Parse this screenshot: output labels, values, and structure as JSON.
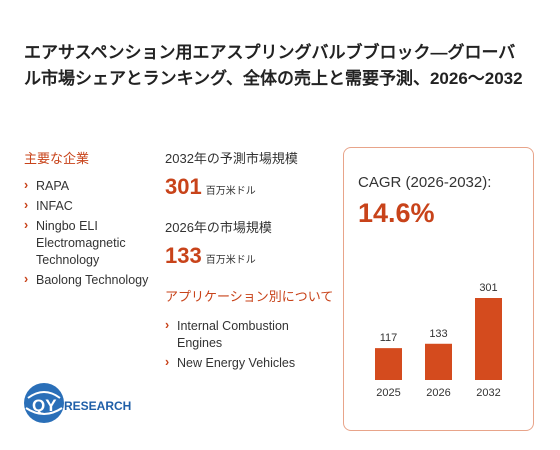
{
  "header": {
    "title": "エアサスペンション用エアスプリングバルブブロック—グローバル市場シェアとランキング、全体の売上と需要予測、2026～2032"
  },
  "companies": {
    "heading": "主要な企業",
    "items": [
      "RAPA",
      "INFAC",
      "Ningbo ELI Electromagnetic Technology",
      "Baolong Technology"
    ]
  },
  "market": {
    "forecast_label": "2032年の予測市場規模",
    "forecast_value": 301,
    "forecast_unit": "百万米ドル",
    "current_label": "2026年の市場規模",
    "current_value": 133,
    "current_unit": "百万米ドル"
  },
  "applications": {
    "heading": "アプリケーション別について",
    "items": [
      "Internal Combustion Engines",
      "New Energy Vehicles"
    ]
  },
  "cagr": {
    "label": "CAGR (2026-2032):",
    "value": "14.6%"
  },
  "chart_data": {
    "type": "bar",
    "categories": [
      "2025",
      "2026",
      "2032"
    ],
    "values": [
      117,
      133,
      301
    ],
    "color": "#d44b1e"
  },
  "logo": {
    "part1": "QY",
    "part2": "RESEARCH"
  }
}
